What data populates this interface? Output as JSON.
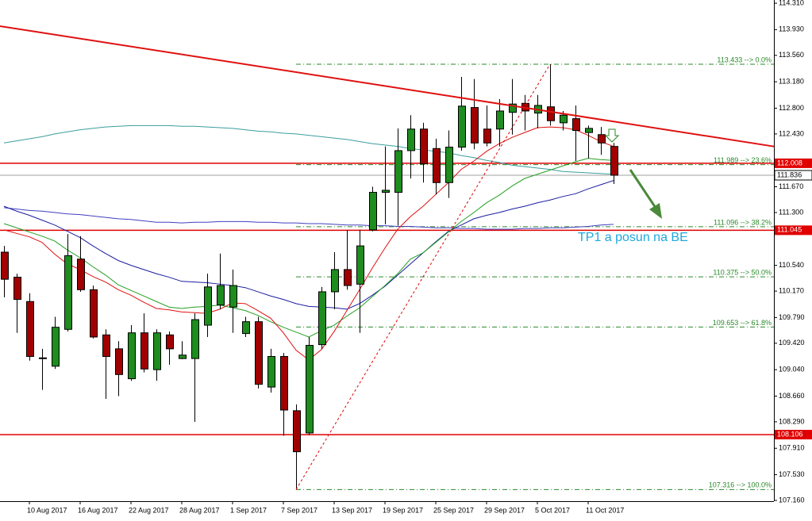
{
  "chart_data": {
    "type": "candlestick",
    "categories": [
      null,
      null,
      "10 Aug 2017",
      null,
      null,
      null,
      "16 Aug 2017",
      null,
      null,
      null,
      "22 Aug 2017",
      null,
      null,
      null,
      "28 Aug 2017",
      null,
      null,
      null,
      "1 Sep 2017",
      null,
      null,
      null,
      "7 Sep 2017",
      null,
      null,
      null,
      "13 Sep 2017",
      null,
      null,
      null,
      "19 Sep 2017",
      null,
      null,
      null,
      "25 Sep 2017",
      null,
      null,
      null,
      "29 Sep 2017",
      null,
      null,
      null,
      "5 Oct 2017",
      null,
      null,
      null,
      "11 Oct 2017",
      null,
      null
    ],
    "open": [
      110.73,
      110.37,
      110.02,
      109.21,
      109.09,
      109.62,
      110.63,
      110.19,
      109.54,
      109.34,
      108.91,
      109.57,
      109.04,
      109.54,
      109.2,
      109.2,
      109.68,
      109.97,
      109.94,
      109.56,
      109.73,
      108.79,
      109.23,
      108.45,
      108.13,
      109.4,
      110.16,
      110.48,
      110.27,
      111.05,
      111.59,
      111.59,
      112.19,
      112.5,
      112.22,
      111.73,
      112.24,
      112.81,
      112.5,
      112.5,
      112.74,
      112.87,
      112.73,
      112.82,
      112.59,
      112.65,
      112.45,
      112.42,
      112.25
    ],
    "high": [
      110.82,
      110.42,
      110.14,
      109.34,
      109.8,
      110.99,
      110.96,
      110.25,
      109.62,
      109.45,
      109.68,
      109.85,
      109.62,
      109.59,
      109.45,
      109.85,
      110.42,
      110.71,
      110.48,
      109.8,
      109.8,
      109.34,
      109.28,
      108.54,
      109.51,
      110.23,
      110.73,
      111.05,
      111.05,
      111.67,
      112.25,
      112.51,
      112.7,
      112.59,
      112.36,
      112.48,
      113.25,
      113.22,
      112.84,
      112.93,
      113.22,
      112.99,
      112.99,
      113.433,
      112.76,
      112.84,
      112.55,
      112.53,
      112.3
    ],
    "low": [
      110.08,
      109.57,
      109.17,
      108.75,
      109.05,
      109.59,
      110.16,
      109.49,
      108.62,
      108.66,
      108.88,
      109.0,
      108.88,
      109.11,
      109.19,
      108.29,
      109.51,
      109.91,
      109.57,
      109.51,
      108.77,
      108.71,
      108.09,
      107.316,
      108.1,
      109.34,
      109.91,
      110.19,
      109.57,
      111.03,
      111.13,
      111.11,
      111.79,
      111.73,
      111.56,
      111.51,
      112.19,
      112.21,
      112.25,
      112.25,
      112.42,
      112.48,
      112.51,
      112.55,
      112.48,
      112.04,
      112.08,
      112.13,
      111.71
    ],
    "close": [
      110.34,
      110.05,
      109.23,
      109.2,
      109.65,
      110.68,
      110.19,
      109.51,
      109.23,
      108.97,
      109.57,
      109.05,
      109.57,
      109.34,
      109.25,
      109.76,
      110.23,
      110.25,
      110.25,
      109.73,
      108.83,
      109.23,
      108.46,
      107.86,
      109.39,
      110.16,
      110.48,
      110.25,
      110.82,
      111.59,
      111.62,
      112.19,
      112.5,
      112.0,
      111.73,
      112.24,
      112.83,
      112.3,
      112.3,
      112.76,
      112.86,
      112.76,
      112.84,
      112.62,
      112.7,
      112.48,
      112.51,
      112.3,
      111.836
    ],
    "up_color": "#1e8c1e",
    "down_color": "#a00000",
    "moving_averages": [
      {
        "color": "#3a9e9e",
        "values": [
          112.3,
          112.33,
          112.36,
          112.39,
          112.43,
          112.46,
          112.49,
          112.51,
          112.53,
          112.54,
          112.55,
          112.55,
          112.55,
          112.55,
          112.54,
          112.54,
          112.53,
          112.52,
          112.51,
          112.49,
          112.47,
          112.46,
          112.44,
          112.43,
          112.41,
          112.39,
          112.37,
          112.35,
          112.32,
          112.29,
          112.27,
          112.25,
          112.22,
          112.2,
          112.18,
          112.16,
          112.12,
          112.09,
          112.05,
          112.02,
          111.98,
          111.96,
          111.94,
          111.92,
          111.89,
          111.88,
          111.87,
          111.86,
          111.85
        ]
      },
      {
        "color": "#4040c0",
        "values": [
          111.37,
          111.35,
          111.33,
          111.32,
          111.3,
          111.28,
          111.27,
          111.25,
          111.23,
          111.21,
          111.2,
          111.18,
          111.16,
          111.16,
          111.15,
          111.16,
          111.16,
          111.17,
          111.17,
          111.17,
          111.16,
          111.16,
          111.15,
          111.15,
          111.14,
          111.14,
          111.13,
          111.12,
          111.12,
          111.11,
          111.11,
          111.1,
          111.1,
          111.09,
          111.08,
          111.08,
          111.07,
          111.07,
          111.06,
          111.06,
          111.06,
          111.07,
          111.07,
          111.08,
          111.08,
          111.09,
          111.1,
          111.12,
          111.13
        ]
      },
      {
        "color": "#1c1ca0",
        "values": [
          111.39,
          111.32,
          111.26,
          111.19,
          111.12,
          111.03,
          110.94,
          110.82,
          110.71,
          110.61,
          110.54,
          110.48,
          110.42,
          110.37,
          110.31,
          110.3,
          110.29,
          110.27,
          110.25,
          110.22,
          110.16,
          110.1,
          110.05,
          109.99,
          109.95,
          109.94,
          109.93,
          109.91,
          109.99,
          110.11,
          110.24,
          110.4,
          110.56,
          110.72,
          110.88,
          111.03,
          111.12,
          111.21,
          111.26,
          111.3,
          111.35,
          111.39,
          111.44,
          111.48,
          111.53,
          111.57,
          111.64,
          111.7,
          111.76
        ]
      },
      {
        "color": "#22a022",
        "values": [
          111.14,
          111.08,
          111.02,
          110.96,
          110.89,
          110.76,
          110.65,
          110.52,
          110.4,
          110.26,
          110.18,
          110.1,
          110.02,
          109.94,
          109.92,
          109.94,
          109.95,
          109.97,
          109.93,
          109.89,
          109.82,
          109.73,
          109.65,
          109.58,
          109.51,
          109.6,
          109.68,
          109.81,
          109.93,
          110.09,
          110.25,
          110.42,
          110.63,
          110.72,
          110.87,
          111.02,
          111.17,
          111.3,
          111.44,
          111.55,
          111.68,
          111.79,
          111.85,
          111.91,
          111.97,
          112.03,
          112.08,
          112.06,
          112.05
        ]
      },
      {
        "color": "#e01010",
        "values": [
          111.05,
          111.0,
          110.95,
          110.87,
          110.7,
          110.56,
          110.48,
          110.38,
          110.3,
          110.19,
          110.11,
          110.01,
          109.92,
          109.9,
          109.87,
          109.86,
          109.85,
          109.91,
          110.0,
          109.99,
          109.89,
          109.78,
          109.57,
          109.32,
          109.18,
          109.33,
          109.59,
          109.89,
          110.19,
          110.5,
          110.79,
          111.06,
          111.24,
          111.39,
          111.56,
          111.73,
          111.92,
          112.04,
          112.18,
          112.29,
          112.38,
          112.45,
          112.52,
          112.53,
          112.52,
          112.49,
          112.41,
          112.32,
          112.25
        ]
      }
    ],
    "trendline": [
      113.98,
      112.25
    ],
    "trendline_color": "#e01010",
    "levels": [
      {
        "value": 112.008,
        "label": "112.008"
      },
      {
        "value": 111.045,
        "label": "111.045"
      },
      {
        "value": 108.106,
        "label": "108.106"
      }
    ],
    "level_color": "#e00000",
    "current": {
      "value": 111.836,
      "label": "111.836"
    },
    "fibonacci": {
      "color": "#2a8a2a",
      "levels": [
        {
          "value": 113.433,
          "label": "113.433 --> 0.0%"
        },
        {
          "value": 111.989,
          "label": "111.989 --> 23.6%"
        },
        {
          "value": 111.096,
          "label": "111.096 --> 38.2%"
        },
        {
          "value": 110.375,
          "label": "110.375 --> 50.0%"
        },
        {
          "value": 109.653,
          "label": "109.653 --> 61.8%"
        },
        {
          "value": 107.316,
          "label": "107.316 --> 100.0%"
        }
      ]
    },
    "annotation": "TP1 a posun na BE",
    "ylim": [
      107.149,
      114.356
    ],
    "yticks": [
      {
        "value": 114.31,
        "label": "114.310"
      },
      {
        "value": 113.93,
        "label": "113.930"
      },
      {
        "value": 113.56,
        "label": "113.560"
      },
      {
        "value": 113.18,
        "label": "113.180"
      },
      {
        "value": 112.8,
        "label": "112.800"
      },
      {
        "value": 112.43,
        "label": "112.430"
      },
      {
        "value": 111.67,
        "label": "111.670"
      },
      {
        "value": 111.3,
        "label": "111.300"
      },
      {
        "value": 110.54,
        "label": "110.540"
      },
      {
        "value": 110.17,
        "label": "110.170"
      },
      {
        "value": 109.79,
        "label": "109.790"
      },
      {
        "value": 109.42,
        "label": "109.420"
      },
      {
        "value": 109.04,
        "label": "109.040"
      },
      {
        "value": 108.66,
        "label": "108.660"
      },
      {
        "value": 108.29,
        "label": "108.290"
      },
      {
        "value": 107.91,
        "label": "107.910"
      },
      {
        "value": 107.53,
        "label": "107.530"
      },
      {
        "value": 107.16,
        "label": "107.160"
      }
    ]
  }
}
